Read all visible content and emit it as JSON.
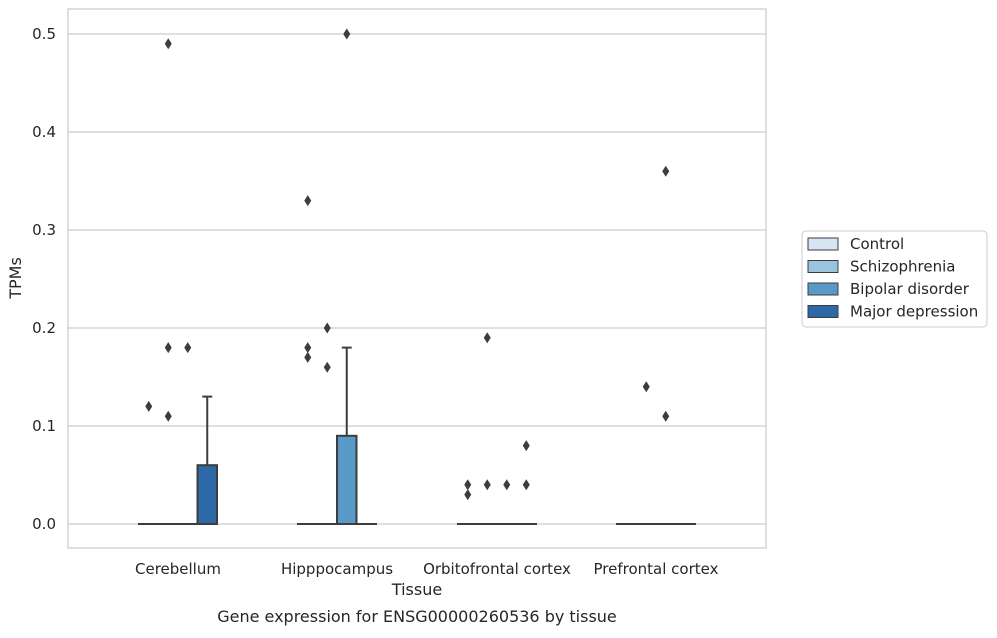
{
  "chart_data": {
    "type": "box",
    "caption": "Gene expression for ENSG00000260536 by tissue",
    "xlabel": "Tissue",
    "ylabel": "TPMs",
    "ylim": [
      -0.025,
      0.525
    ],
    "yticks": [
      0.0,
      0.1,
      0.2,
      0.3,
      0.4,
      0.5
    ],
    "ytick_labels": [
      "0.0",
      "0.1",
      "0.2",
      "0.3",
      "0.4",
      "0.5"
    ],
    "grid": "horizontal",
    "legend_placement": "right",
    "categories": [
      "Cerebellum",
      "Hipppocampus",
      "Orbitofrontal cortex",
      "Prefrontal cortex"
    ],
    "series": [
      {
        "name": "Control",
        "color": "#d6e4f3",
        "boxes": [
          {
            "q1": 0,
            "median": 0,
            "q3": 0,
            "whisker_low": 0,
            "whisker_high": 0,
            "outliers": [
              0.12
            ]
          },
          {
            "q1": 0,
            "median": 0,
            "q3": 0,
            "whisker_low": 0,
            "whisker_high": 0,
            "outliers": [
              0.18,
              0.17,
              0.33
            ]
          },
          {
            "q1": 0,
            "median": 0,
            "q3": 0,
            "whisker_low": 0,
            "whisker_high": 0,
            "outliers": [
              0.04,
              0.03
            ]
          },
          {
            "q1": 0,
            "median": 0,
            "q3": 0,
            "whisker_low": 0,
            "whisker_high": 0,
            "outliers": []
          }
        ]
      },
      {
        "name": "Schizophrenia",
        "color": "#9ac4de",
        "boxes": [
          {
            "q1": 0,
            "median": 0,
            "q3": 0,
            "whisker_low": 0,
            "whisker_high": 0,
            "outliers": [
              0.49,
              0.18,
              0.11
            ]
          },
          {
            "q1": 0,
            "median": 0,
            "q3": 0,
            "whisker_low": 0,
            "whisker_high": 0,
            "outliers": [
              0.2,
              0.16
            ]
          },
          {
            "q1": 0,
            "median": 0,
            "q3": 0,
            "whisker_low": 0,
            "whisker_high": 0,
            "outliers": [
              0.19,
              0.04
            ]
          },
          {
            "q1": 0,
            "median": 0,
            "q3": 0,
            "whisker_low": 0,
            "whisker_high": 0,
            "outliers": [
              0.14
            ]
          }
        ]
      },
      {
        "name": "Bipolar disorder",
        "color": "#5a9ac8",
        "boxes": [
          {
            "q1": 0,
            "median": 0,
            "q3": 0,
            "whisker_low": 0,
            "whisker_high": 0,
            "outliers": [
              0.18
            ]
          },
          {
            "q1": 0,
            "median": 0,
            "q3": 0.09,
            "whisker_low": 0,
            "whisker_high": 0.18,
            "outliers": [
              0.5
            ]
          },
          {
            "q1": 0,
            "median": 0,
            "q3": 0,
            "whisker_low": 0,
            "whisker_high": 0,
            "outliers": [
              0.04
            ]
          },
          {
            "q1": 0,
            "median": 0,
            "q3": 0,
            "whisker_low": 0,
            "whisker_high": 0,
            "outliers": [
              0.36,
              0.11
            ]
          }
        ]
      },
      {
        "name": "Major depression",
        "color": "#2c69a6",
        "boxes": [
          {
            "q1": 0,
            "median": 0,
            "q3": 0.06,
            "whisker_low": 0,
            "whisker_high": 0.13,
            "outliers": []
          },
          {
            "q1": 0,
            "median": 0,
            "q3": 0,
            "whisker_low": 0,
            "whisker_high": 0,
            "outliers": []
          },
          {
            "q1": 0,
            "median": 0,
            "q3": 0,
            "whisker_low": 0,
            "whisker_high": 0,
            "outliers": [
              0.08,
              0.04
            ]
          },
          {
            "q1": 0,
            "median": 0,
            "q3": 0,
            "whisker_low": 0,
            "whisker_high": 0,
            "outliers": []
          }
        ]
      }
    ]
  }
}
